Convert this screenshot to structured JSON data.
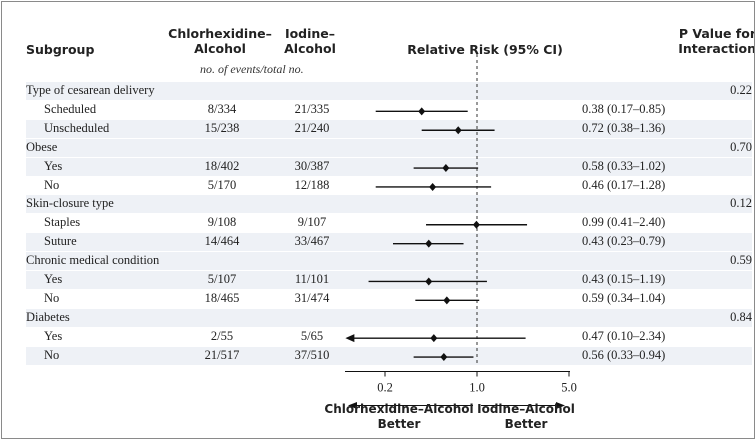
{
  "headers": {
    "subgroup": "Subgroup",
    "group1": "Chlorhexidine–\nAlcohol",
    "group2": "Iodine–\nAlcohol",
    "units": "no. of events/total no.",
    "rr": "Relative Risk (95% CI)",
    "pvalue": "P Value for\nInteraction"
  },
  "footer": {
    "left_better": "Chlorhexidine–Alcohol\nBetter",
    "right_better": "Iodine–Alcohol\nBetter"
  },
  "chart_data": {
    "type": "forest",
    "x_scale": "log",
    "xlim": [
      0.1,
      5.0
    ],
    "reference_line": 1.0,
    "x_ticks": [
      0.2,
      1.0,
      5.0
    ],
    "x_tick_labels": [
      "0.2",
      "1.0",
      "5.0"
    ],
    "groups": [
      {
        "label": "Type of cesarean delivery",
        "p_interaction": "0.22",
        "rows": [
          {
            "label": "Scheduled",
            "events1": "8/334",
            "events2": "21/335",
            "rr": 0.38,
            "lo": 0.17,
            "hi": 0.85,
            "text": "0.38 (0.17–0.85)"
          },
          {
            "label": "Unscheduled",
            "events1": "15/238",
            "events2": "21/240",
            "rr": 0.72,
            "lo": 0.38,
            "hi": 1.36,
            "text": "0.72 (0.38–1.36)"
          }
        ]
      },
      {
        "label": "Obese",
        "p_interaction": "0.70",
        "rows": [
          {
            "label": "Yes",
            "events1": "18/402",
            "events2": "30/387",
            "rr": 0.58,
            "lo": 0.33,
            "hi": 1.02,
            "text": "0.58 (0.33–1.02)"
          },
          {
            "label": "No",
            "events1": "5/170",
            "events2": "12/188",
            "rr": 0.46,
            "lo": 0.17,
            "hi": 1.28,
            "text": "0.46 (0.17–1.28)"
          }
        ]
      },
      {
        "label": "Skin-closure type",
        "p_interaction": "0.12",
        "rows": [
          {
            "label": "Staples",
            "events1": "9/108",
            "events2": "9/107",
            "rr": 0.99,
            "lo": 0.41,
            "hi": 2.4,
            "text": "0.99 (0.41–2.40)"
          },
          {
            "label": "Suture",
            "events1": "14/464",
            "events2": "33/467",
            "rr": 0.43,
            "lo": 0.23,
            "hi": 0.79,
            "text": "0.43 (0.23–0.79)"
          }
        ]
      },
      {
        "label": "Chronic medical condition",
        "p_interaction": "0.59",
        "rows": [
          {
            "label": "Yes",
            "events1": "5/107",
            "events2": "11/101",
            "rr": 0.43,
            "lo": 0.15,
            "hi": 1.19,
            "text": "0.43 (0.15–1.19)"
          },
          {
            "label": "No",
            "events1": "18/465",
            "events2": "31/474",
            "rr": 0.59,
            "lo": 0.34,
            "hi": 1.04,
            "text": "0.59 (0.34–1.04)"
          }
        ]
      },
      {
        "label": "Diabetes",
        "p_interaction": "0.84",
        "rows": [
          {
            "label": "Yes",
            "events1": "2/55",
            "events2": "5/65",
            "rr": 0.47,
            "lo": 0.1,
            "hi": 2.34,
            "text": "0.47 (0.10–2.34)",
            "lo_truncated": true
          },
          {
            "label": "No",
            "events1": "21/517",
            "events2": "37/510",
            "rr": 0.56,
            "lo": 0.33,
            "hi": 0.94,
            "text": "0.56 (0.33–0.94)"
          }
        ]
      }
    ]
  }
}
